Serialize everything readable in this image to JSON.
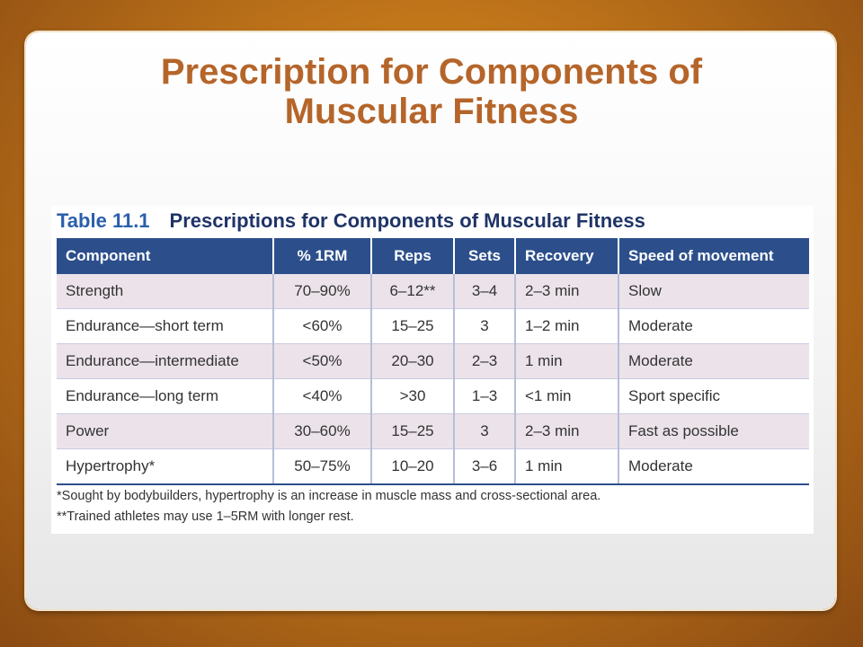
{
  "slide": {
    "title_line1": "Prescription for Components of",
    "title_line2": "Muscular Fitness"
  },
  "table": {
    "number": "Table 11.1",
    "caption": "Prescriptions for Components of Muscular Fitness",
    "headers": [
      "Component",
      "% 1RM",
      "Reps",
      "Sets",
      "Recovery",
      "Speed of movement"
    ],
    "rows": [
      [
        "Strength",
        "70–90%",
        "6–12**",
        "3–4",
        "2–3 min",
        "Slow"
      ],
      [
        "Endurance—short term",
        "<60%",
        "15–25",
        "3",
        "1–2 min",
        "Moderate"
      ],
      [
        "Endurance—intermediate",
        "<50%",
        "20–30",
        "2–3",
        "1 min",
        "Moderate"
      ],
      [
        "Endurance—long term",
        "<40%",
        ">30",
        "1–3",
        "<1 min",
        "Sport specific"
      ],
      [
        "Power",
        "30–60%",
        "15–25",
        "3",
        "2–3 min",
        "Fast as possible"
      ],
      [
        "Hypertrophy*",
        "50–75%",
        "10–20",
        "3–6",
        "1 min",
        "Moderate"
      ]
    ],
    "footnotes": [
      "*Sought by bodybuilders, hypertrophy is an increase in muscle mass and cross-sectional area.",
      "**Trained athletes may use 1–5RM with longer rest."
    ]
  },
  "colors": {
    "title": "#b5652a",
    "header_bg": "#2c4f8c",
    "row_shade": "#ece3ea",
    "background": "#c0751a"
  }
}
